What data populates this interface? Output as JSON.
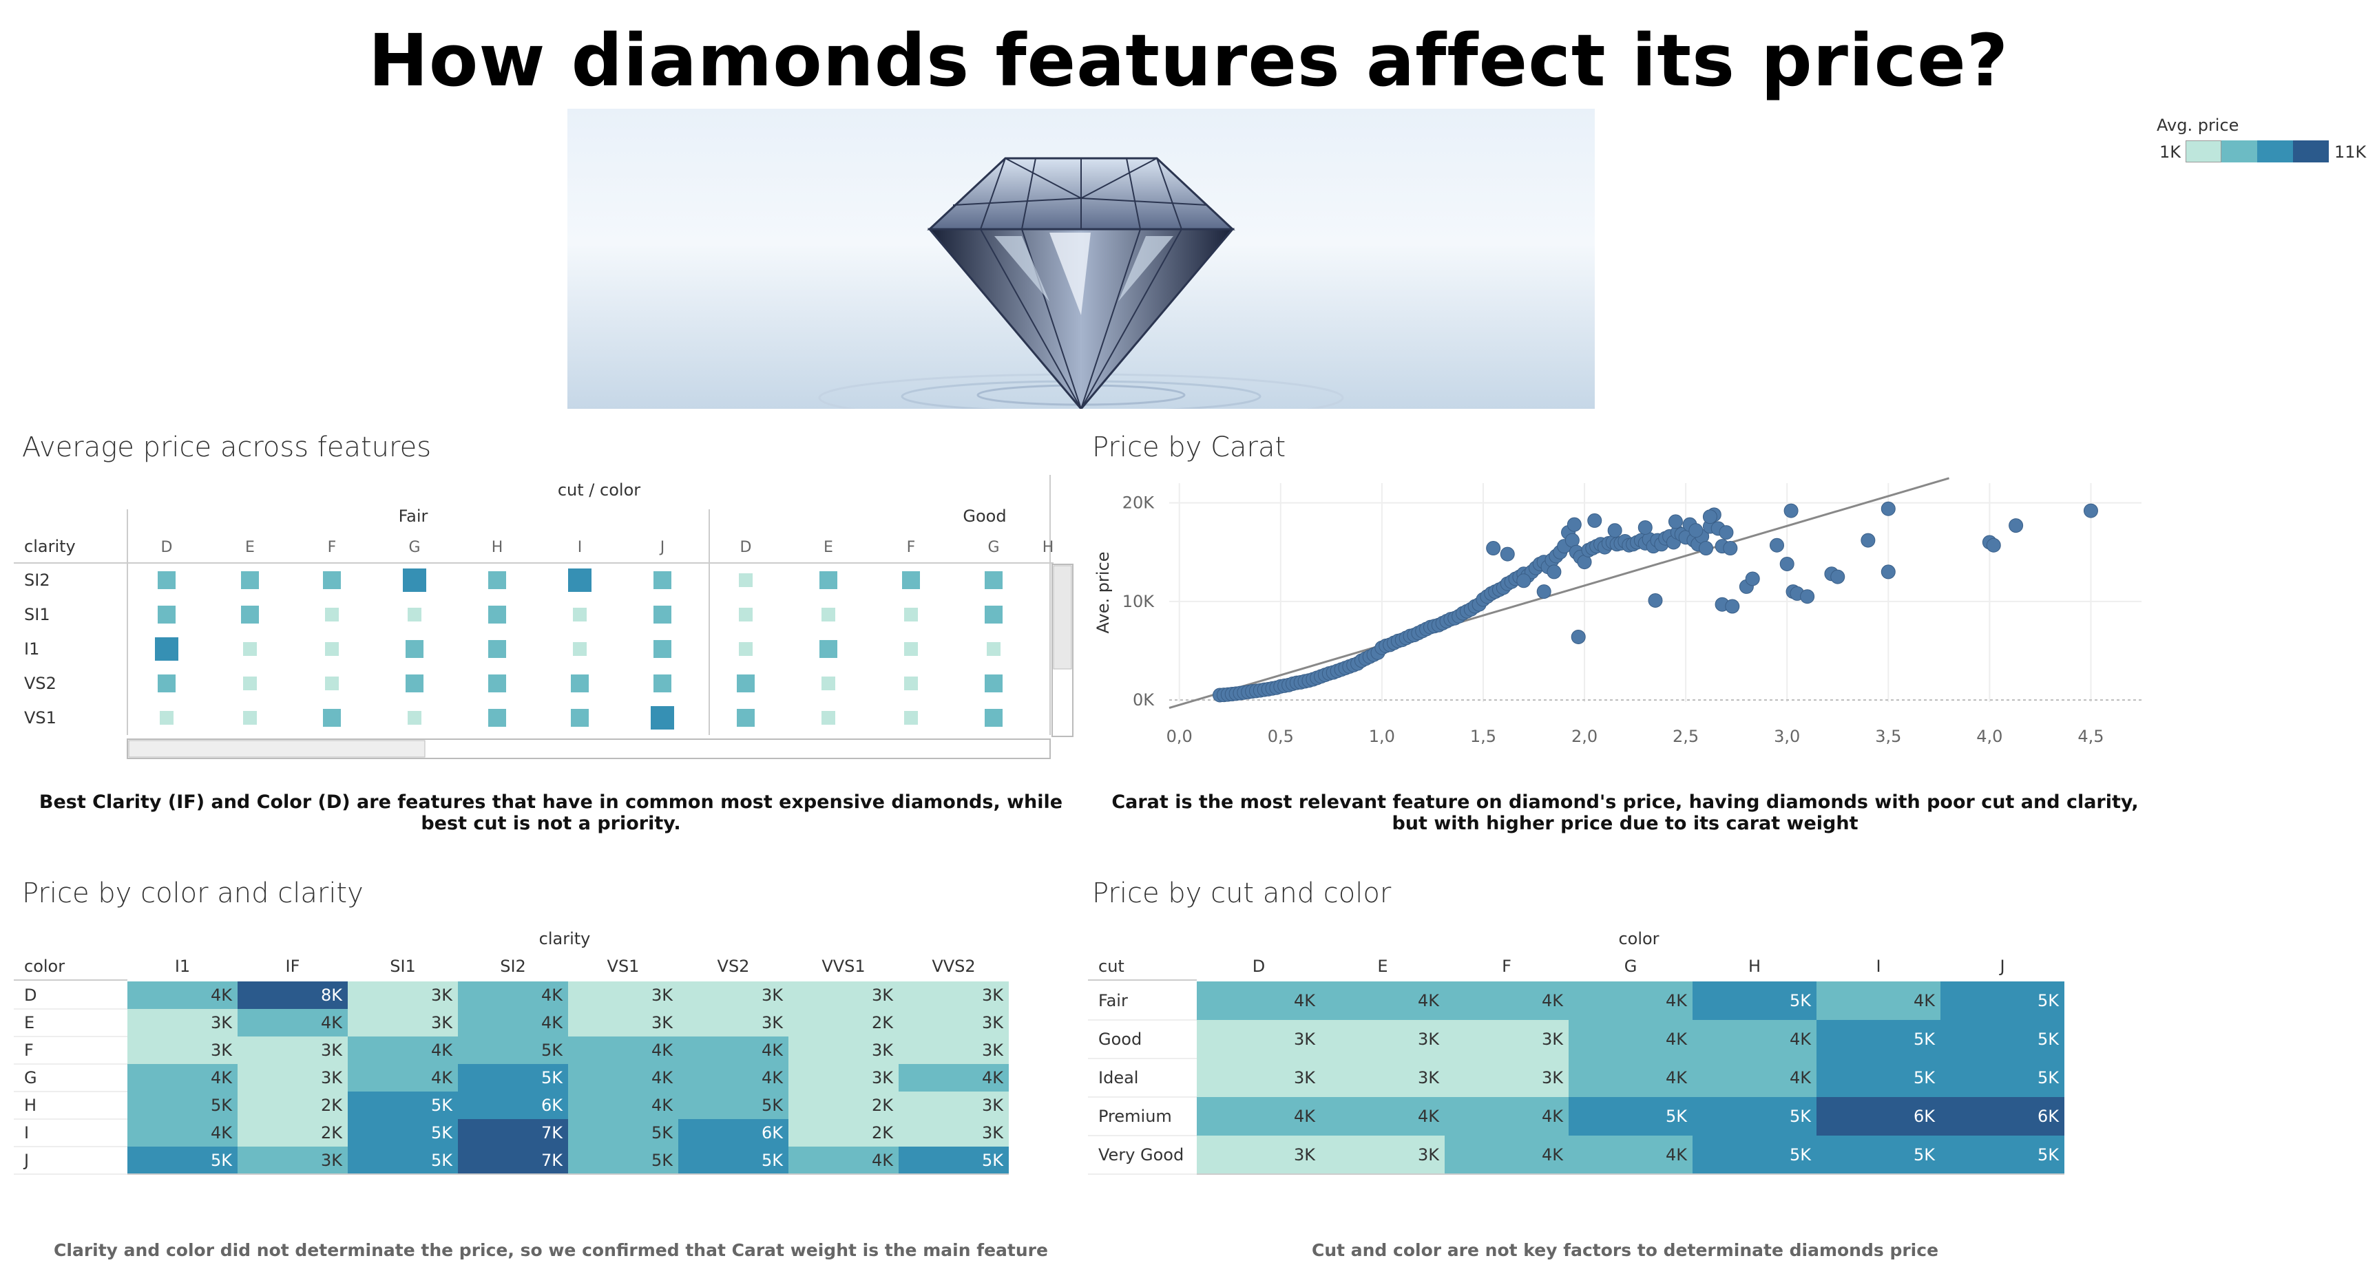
{
  "title": "How diamonds features affect its price?",
  "legend": {
    "title": "Avg. price",
    "min_label": "1K",
    "max_label": "11K",
    "colors": [
      "#bee6dc",
      "#6cbbc4",
      "#3690b4",
      "#2b5a8c"
    ]
  },
  "sheet1": {
    "title": "Average price across features",
    "header": "cut / color",
    "row_header": "clarity",
    "groups": [
      {
        "label": "Fair",
        "colors": [
          "D",
          "E",
          "F",
          "G",
          "H",
          "I",
          "J"
        ]
      },
      {
        "label": "Good",
        "colors": [
          "D",
          "E",
          "F",
          "G",
          "H"
        ]
      }
    ],
    "rows": [
      "SI2",
      "SI1",
      "I1",
      "VS2",
      "VS1"
    ],
    "size_levels": [
      [
        1,
        1,
        1,
        3,
        1,
        3,
        1,
        0,
        1,
        1,
        1
      ],
      [
        1,
        1,
        0,
        0,
        1,
        0,
        1,
        0,
        0,
        0,
        1
      ],
      [
        3,
        0,
        0,
        1,
        1,
        0,
        1,
        0,
        1,
        0,
        0
      ],
      [
        1,
        0,
        0,
        1,
        1,
        1,
        1,
        1,
        0,
        0,
        1
      ],
      [
        0,
        0,
        1,
        0,
        1,
        1,
        3,
        1,
        0,
        0,
        1
      ]
    ],
    "caption": "Best Clarity (IF) and Color (D) are features that have in common most expensive diamonds, while best cut is not a priority."
  },
  "sheet2": {
    "title": "Price by Carat",
    "caption": "Carat is the most relevant feature on diamond's price, having diamonds with poor cut and clarity, but with higher price due to its carat weight"
  },
  "sheet3": {
    "title": "Price by color and clarity",
    "header": "clarity",
    "row_header": "color",
    "columns": [
      "I1",
      "IF",
      "SI1",
      "SI2",
      "VS1",
      "VS2",
      "VVS1",
      "VVS2"
    ],
    "rows": [
      {
        "label": "D",
        "values": [
          "4K",
          "8K",
          "3K",
          "4K",
          "3K",
          "3K",
          "3K",
          "3K"
        ],
        "levels": [
          1,
          3,
          0,
          1,
          0,
          0,
          0,
          0
        ]
      },
      {
        "label": "E",
        "values": [
          "3K",
          "4K",
          "3K",
          "4K",
          "3K",
          "3K",
          "2K",
          "3K"
        ],
        "levels": [
          0,
          1,
          0,
          1,
          0,
          0,
          0,
          0
        ]
      },
      {
        "label": "F",
        "values": [
          "3K",
          "3K",
          "4K",
          "5K",
          "4K",
          "4K",
          "3K",
          "3K"
        ],
        "levels": [
          0,
          0,
          1,
          1,
          1,
          1,
          0,
          0
        ]
      },
      {
        "label": "G",
        "values": [
          "4K",
          "3K",
          "4K",
          "5K",
          "4K",
          "4K",
          "3K",
          "4K"
        ],
        "levels": [
          1,
          0,
          1,
          2,
          1,
          1,
          0,
          1
        ]
      },
      {
        "label": "H",
        "values": [
          "5K",
          "2K",
          "5K",
          "6K",
          "4K",
          "5K",
          "2K",
          "3K"
        ],
        "levels": [
          1,
          0,
          2,
          2,
          1,
          1,
          0,
          0
        ]
      },
      {
        "label": "I",
        "values": [
          "4K",
          "2K",
          "5K",
          "7K",
          "5K",
          "6K",
          "2K",
          "3K"
        ],
        "levels": [
          1,
          0,
          2,
          3,
          1,
          2,
          0,
          0
        ]
      },
      {
        "label": "J",
        "values": [
          "5K",
          "3K",
          "5K",
          "7K",
          "5K",
          "5K",
          "4K",
          "5K"
        ],
        "levels": [
          2,
          1,
          2,
          3,
          1,
          2,
          1,
          2
        ]
      }
    ],
    "note": "Clarity and color did not determinate the price, so we confirmed that Carat weight is the main feature"
  },
  "sheet4": {
    "title": "Price by cut and color",
    "header": "color",
    "row_header": "cut",
    "columns": [
      "D",
      "E",
      "F",
      "G",
      "H",
      "I",
      "J"
    ],
    "rows": [
      {
        "label": "Fair",
        "values": [
          "4K",
          "4K",
          "4K",
          "4K",
          "5K",
          "4K",
          "5K"
        ],
        "levels": [
          1,
          1,
          1,
          1,
          2,
          1,
          2
        ]
      },
      {
        "label": "Good",
        "values": [
          "3K",
          "3K",
          "3K",
          "4K",
          "4K",
          "5K",
          "5K"
        ],
        "levels": [
          0,
          0,
          0,
          1,
          1,
          2,
          2
        ]
      },
      {
        "label": "Ideal",
        "values": [
          "3K",
          "3K",
          "3K",
          "4K",
          "4K",
          "5K",
          "5K"
        ],
        "levels": [
          0,
          0,
          0,
          1,
          1,
          2,
          2
        ]
      },
      {
        "label": "Premium",
        "values": [
          "4K",
          "4K",
          "4K",
          "5K",
          "5K",
          "6K",
          "6K"
        ],
        "levels": [
          1,
          1,
          1,
          2,
          2,
          3,
          3
        ]
      },
      {
        "label": "Very Good",
        "values": [
          "3K",
          "3K",
          "4K",
          "4K",
          "5K",
          "5K",
          "5K"
        ],
        "levels": [
          0,
          0,
          1,
          1,
          2,
          2,
          2
        ]
      }
    ],
    "note": "Cut and color are not key factors to determinate diamonds price"
  },
  "chart_data": [
    {
      "type": "scatter",
      "title": "Price by Carat",
      "xlabel": "",
      "ylabel": "Ave. price",
      "x_ticks": [
        "0,0",
        "0,5",
        "1,0",
        "1,5",
        "2,0",
        "2,5",
        "3,0",
        "3,5",
        "4,0",
        "4,5"
      ],
      "y_ticks": [
        "0K",
        "10K",
        "20K"
      ],
      "xlim": [
        -0.05,
        4.75
      ],
      "ylim": [
        -200,
        22000
      ],
      "trend_line": {
        "x": [
          -0.05,
          3.8
        ],
        "y": [
          -800,
          22500
        ]
      },
      "color": "#4e79a7",
      "points": [
        [
          0.2,
          500
        ],
        [
          0.22,
          520
        ],
        [
          0.24,
          560
        ],
        [
          0.26,
          600
        ],
        [
          0.28,
          650
        ],
        [
          0.3,
          700
        ],
        [
          0.32,
          760
        ],
        [
          0.34,
          820
        ],
        [
          0.36,
          880
        ],
        [
          0.38,
          930
        ],
        [
          0.4,
          980
        ],
        [
          0.42,
          1050
        ],
        [
          0.44,
          1100
        ],
        [
          0.46,
          1180
        ],
        [
          0.48,
          1250
        ],
        [
          0.5,
          1380
        ],
        [
          0.52,
          1450
        ],
        [
          0.54,
          1520
        ],
        [
          0.56,
          1650
        ],
        [
          0.58,
          1750
        ],
        [
          0.6,
          1800
        ],
        [
          0.62,
          1900
        ],
        [
          0.64,
          1980
        ],
        [
          0.66,
          2100
        ],
        [
          0.68,
          2250
        ],
        [
          0.7,
          2400
        ],
        [
          0.72,
          2550
        ],
        [
          0.74,
          2700
        ],
        [
          0.76,
          2800
        ],
        [
          0.78,
          2950
        ],
        [
          0.8,
          3100
        ],
        [
          0.82,
          3250
        ],
        [
          0.84,
          3400
        ],
        [
          0.86,
          3550
        ],
        [
          0.88,
          3700
        ],
        [
          0.9,
          4000
        ],
        [
          0.92,
          4200
        ],
        [
          0.94,
          4400
        ],
        [
          0.96,
          4600
        ],
        [
          0.98,
          4800
        ],
        [
          1.0,
          5300
        ],
        [
          1.02,
          5500
        ],
        [
          1.04,
          5600
        ],
        [
          1.06,
          5800
        ],
        [
          1.08,
          6000
        ],
        [
          1.1,
          6100
        ],
        [
          1.12,
          6300
        ],
        [
          1.14,
          6500
        ],
        [
          1.16,
          6600
        ],
        [
          1.18,
          6800
        ],
        [
          1.2,
          7000
        ],
        [
          1.22,
          7200
        ],
        [
          1.24,
          7400
        ],
        [
          1.26,
          7500
        ],
        [
          1.28,
          7600
        ],
        [
          1.3,
          7800
        ],
        [
          1.32,
          8000
        ],
        [
          1.34,
          8200
        ],
        [
          1.36,
          8300
        ],
        [
          1.38,
          8500
        ],
        [
          1.4,
          8800
        ],
        [
          1.42,
          9000
        ],
        [
          1.44,
          9200
        ],
        [
          1.46,
          9500
        ],
        [
          1.48,
          9700
        ],
        [
          1.5,
          10200
        ],
        [
          1.52,
          10500
        ],
        [
          1.54,
          10800
        ],
        [
          1.56,
          11000
        ],
        [
          1.58,
          11200
        ],
        [
          1.6,
          11400
        ],
        [
          1.62,
          11800
        ],
        [
          1.64,
          12000
        ],
        [
          1.66,
          12300
        ],
        [
          1.68,
          12500
        ],
        [
          1.7,
          12800
        ],
        [
          1.72,
          12600
        ],
        [
          1.74,
          13000
        ],
        [
          1.76,
          13400
        ],
        [
          1.78,
          13800
        ],
        [
          1.8,
          14000
        ],
        [
          1.82,
          13500
        ],
        [
          1.84,
          14200
        ],
        [
          1.86,
          14600
        ],
        [
          1.88,
          15000
        ],
        [
          1.9,
          15600
        ],
        [
          1.92,
          17000
        ],
        [
          1.94,
          16200
        ],
        [
          1.96,
          15000
        ],
        [
          1.98,
          14500
        ],
        [
          2.0,
          14000
        ],
        [
          2.02,
          15200
        ],
        [
          2.04,
          15400
        ],
        [
          2.06,
          15600
        ],
        [
          2.08,
          15800
        ],
        [
          2.1,
          15500
        ],
        [
          2.12,
          15900
        ],
        [
          2.14,
          16000
        ],
        [
          2.16,
          15800
        ],
        [
          2.18,
          15900
        ],
        [
          2.2,
          16100
        ],
        [
          2.22,
          15700
        ],
        [
          2.24,
          15800
        ],
        [
          2.26,
          16000
        ],
        [
          2.28,
          16200
        ],
        [
          2.3,
          15900
        ],
        [
          2.32,
          16300
        ],
        [
          2.34,
          15600
        ],
        [
          2.36,
          16200
        ],
        [
          2.38,
          15800
        ],
        [
          2.4,
          16400
        ],
        [
          2.42,
          16600
        ],
        [
          2.44,
          16000
        ],
        [
          2.46,
          17000
        ],
        [
          2.48,
          16800
        ],
        [
          2.5,
          16500
        ],
        [
          2.52,
          17800
        ],
        [
          2.54,
          16200
        ],
        [
          2.56,
          15800
        ],
        [
          2.58,
          16600
        ],
        [
          2.6,
          15400
        ],
        [
          2.62,
          17600
        ],
        [
          2.64,
          18800
        ],
        [
          2.66,
          17400
        ],
        [
          2.68,
          15600
        ],
        [
          2.72,
          15400
        ],
        [
          1.55,
          15400
        ],
        [
          1.62,
          14800
        ],
        [
          1.7,
          12100
        ],
        [
          1.8,
          11000
        ],
        [
          1.85,
          13000
        ],
        [
          1.95,
          17800
        ],
        [
          2.05,
          18200
        ],
        [
          2.15,
          17200
        ],
        [
          2.3,
          17500
        ],
        [
          2.45,
          18100
        ],
        [
          2.55,
          17200
        ],
        [
          2.62,
          18600
        ],
        [
          2.7,
          17000
        ],
        [
          1.97,
          6400
        ],
        [
          2.35,
          10100
        ],
        [
          2.68,
          9700
        ],
        [
          2.73,
          9500
        ],
        [
          2.8,
          11500
        ],
        [
          2.83,
          12300
        ],
        [
          2.95,
          15700
        ],
        [
          3.0,
          13800
        ],
        [
          3.03,
          11000
        ],
        [
          3.05,
          10800
        ],
        [
          3.1,
          10500
        ],
        [
          3.22,
          12800
        ],
        [
          3.25,
          12500
        ],
        [
          3.02,
          19200
        ],
        [
          3.5,
          19400
        ],
        [
          3.4,
          16200
        ],
        [
          3.5,
          13000
        ],
        [
          4.0,
          16000
        ],
        [
          4.02,
          15700
        ],
        [
          4.13,
          17700
        ],
        [
          4.5,
          19200
        ]
      ]
    },
    {
      "type": "heatmap",
      "title": "Price by color and clarity",
      "x": [
        "I1",
        "IF",
        "SI1",
        "SI2",
        "VS1",
        "VS2",
        "VVS1",
        "VVS2"
      ],
      "y": [
        "D",
        "E",
        "F",
        "G",
        "H",
        "I",
        "J"
      ],
      "values": [
        [
          "4K",
          "8K",
          "3K",
          "4K",
          "3K",
          "3K",
          "3K",
          "3K"
        ],
        [
          "3K",
          "4K",
          "3K",
          "4K",
          "3K",
          "3K",
          "2K",
          "3K"
        ],
        [
          "3K",
          "3K",
          "4K",
          "5K",
          "4K",
          "4K",
          "3K",
          "3K"
        ],
        [
          "4K",
          "3K",
          "4K",
          "5K",
          "4K",
          "4K",
          "3K",
          "4K"
        ],
        [
          "5K",
          "2K",
          "5K",
          "6K",
          "4K",
          "5K",
          "2K",
          "3K"
        ],
        [
          "4K",
          "2K",
          "5K",
          "7K",
          "5K",
          "6K",
          "2K",
          "3K"
        ],
        [
          "5K",
          "3K",
          "5K",
          "7K",
          "5K",
          "5K",
          "4K",
          "5K"
        ]
      ]
    },
    {
      "type": "heatmap",
      "title": "Price by cut and color",
      "x": [
        "D",
        "E",
        "F",
        "G",
        "H",
        "I",
        "J"
      ],
      "y": [
        "Fair",
        "Good",
        "Ideal",
        "Premium",
        "Very Good"
      ],
      "values": [
        [
          "4K",
          "4K",
          "4K",
          "4K",
          "5K",
          "4K",
          "5K"
        ],
        [
          "3K",
          "3K",
          "3K",
          "4K",
          "4K",
          "5K",
          "5K"
        ],
        [
          "3K",
          "3K",
          "3K",
          "4K",
          "4K",
          "5K",
          "5K"
        ],
        [
          "4K",
          "4K",
          "4K",
          "5K",
          "5K",
          "6K",
          "6K"
        ],
        [
          "3K",
          "3K",
          "4K",
          "4K",
          "5K",
          "5K",
          "5K"
        ]
      ]
    }
  ]
}
